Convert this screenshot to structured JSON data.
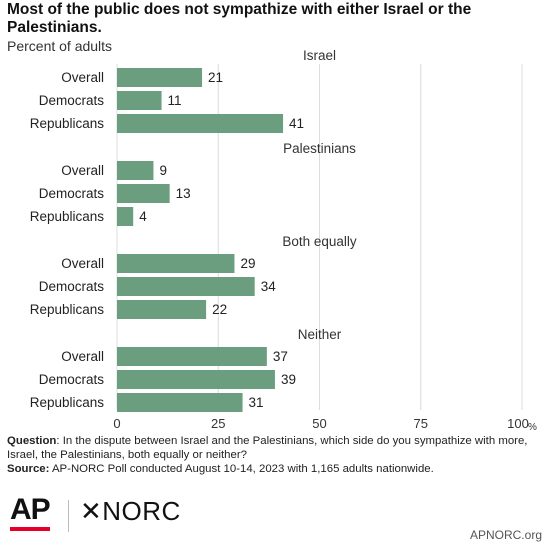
{
  "header": {
    "title": "Most of the public does not sympathize with either Israel or the Palestinians.",
    "subtitle": "Percent of adults"
  },
  "colors": {
    "bar": "#6b9e7e",
    "grid": "#dcdcdc",
    "text": "#222222"
  },
  "chart_data": {
    "type": "bar",
    "orientation": "horizontal",
    "title": "Most of the public does not sympathize with either Israel or the Palestinians.",
    "subtitle": "Percent of adults",
    "xlim": [
      0,
      100
    ],
    "x_ticks": [
      "0",
      "25",
      "50",
      "75",
      "100"
    ],
    "x_unit": "%",
    "grid": true,
    "groups": [
      {
        "name": "Israel",
        "categories": [
          "Overall",
          "Democrats",
          "Republicans"
        ],
        "values": [
          21,
          11,
          41
        ]
      },
      {
        "name": "Palestinians",
        "categories": [
          "Overall",
          "Democrats",
          "Republicans"
        ],
        "values": [
          9,
          13,
          4
        ]
      },
      {
        "name": "Both equally",
        "categories": [
          "Overall",
          "Democrats",
          "Republicans"
        ],
        "values": [
          29,
          34,
          22
        ]
      },
      {
        "name": "Neither",
        "categories": [
          "Overall",
          "Democrats",
          "Republicans"
        ],
        "values": [
          37,
          39,
          31
        ]
      }
    ]
  },
  "notes": {
    "question_label": "Question",
    "question_text": ": In the dispute between Israel and the Palestinians, which side do you sympathize with more, Israel, the Palestinians, both equally or neither?",
    "source_label": "Source:",
    "source_text": " AP-NORC Poll conducted August 10-14, 2023 with 1,165 adults nationwide."
  },
  "footer": {
    "logo_ap": "AP",
    "logo_norc": "✕NORC",
    "site": "APNORC.org"
  }
}
